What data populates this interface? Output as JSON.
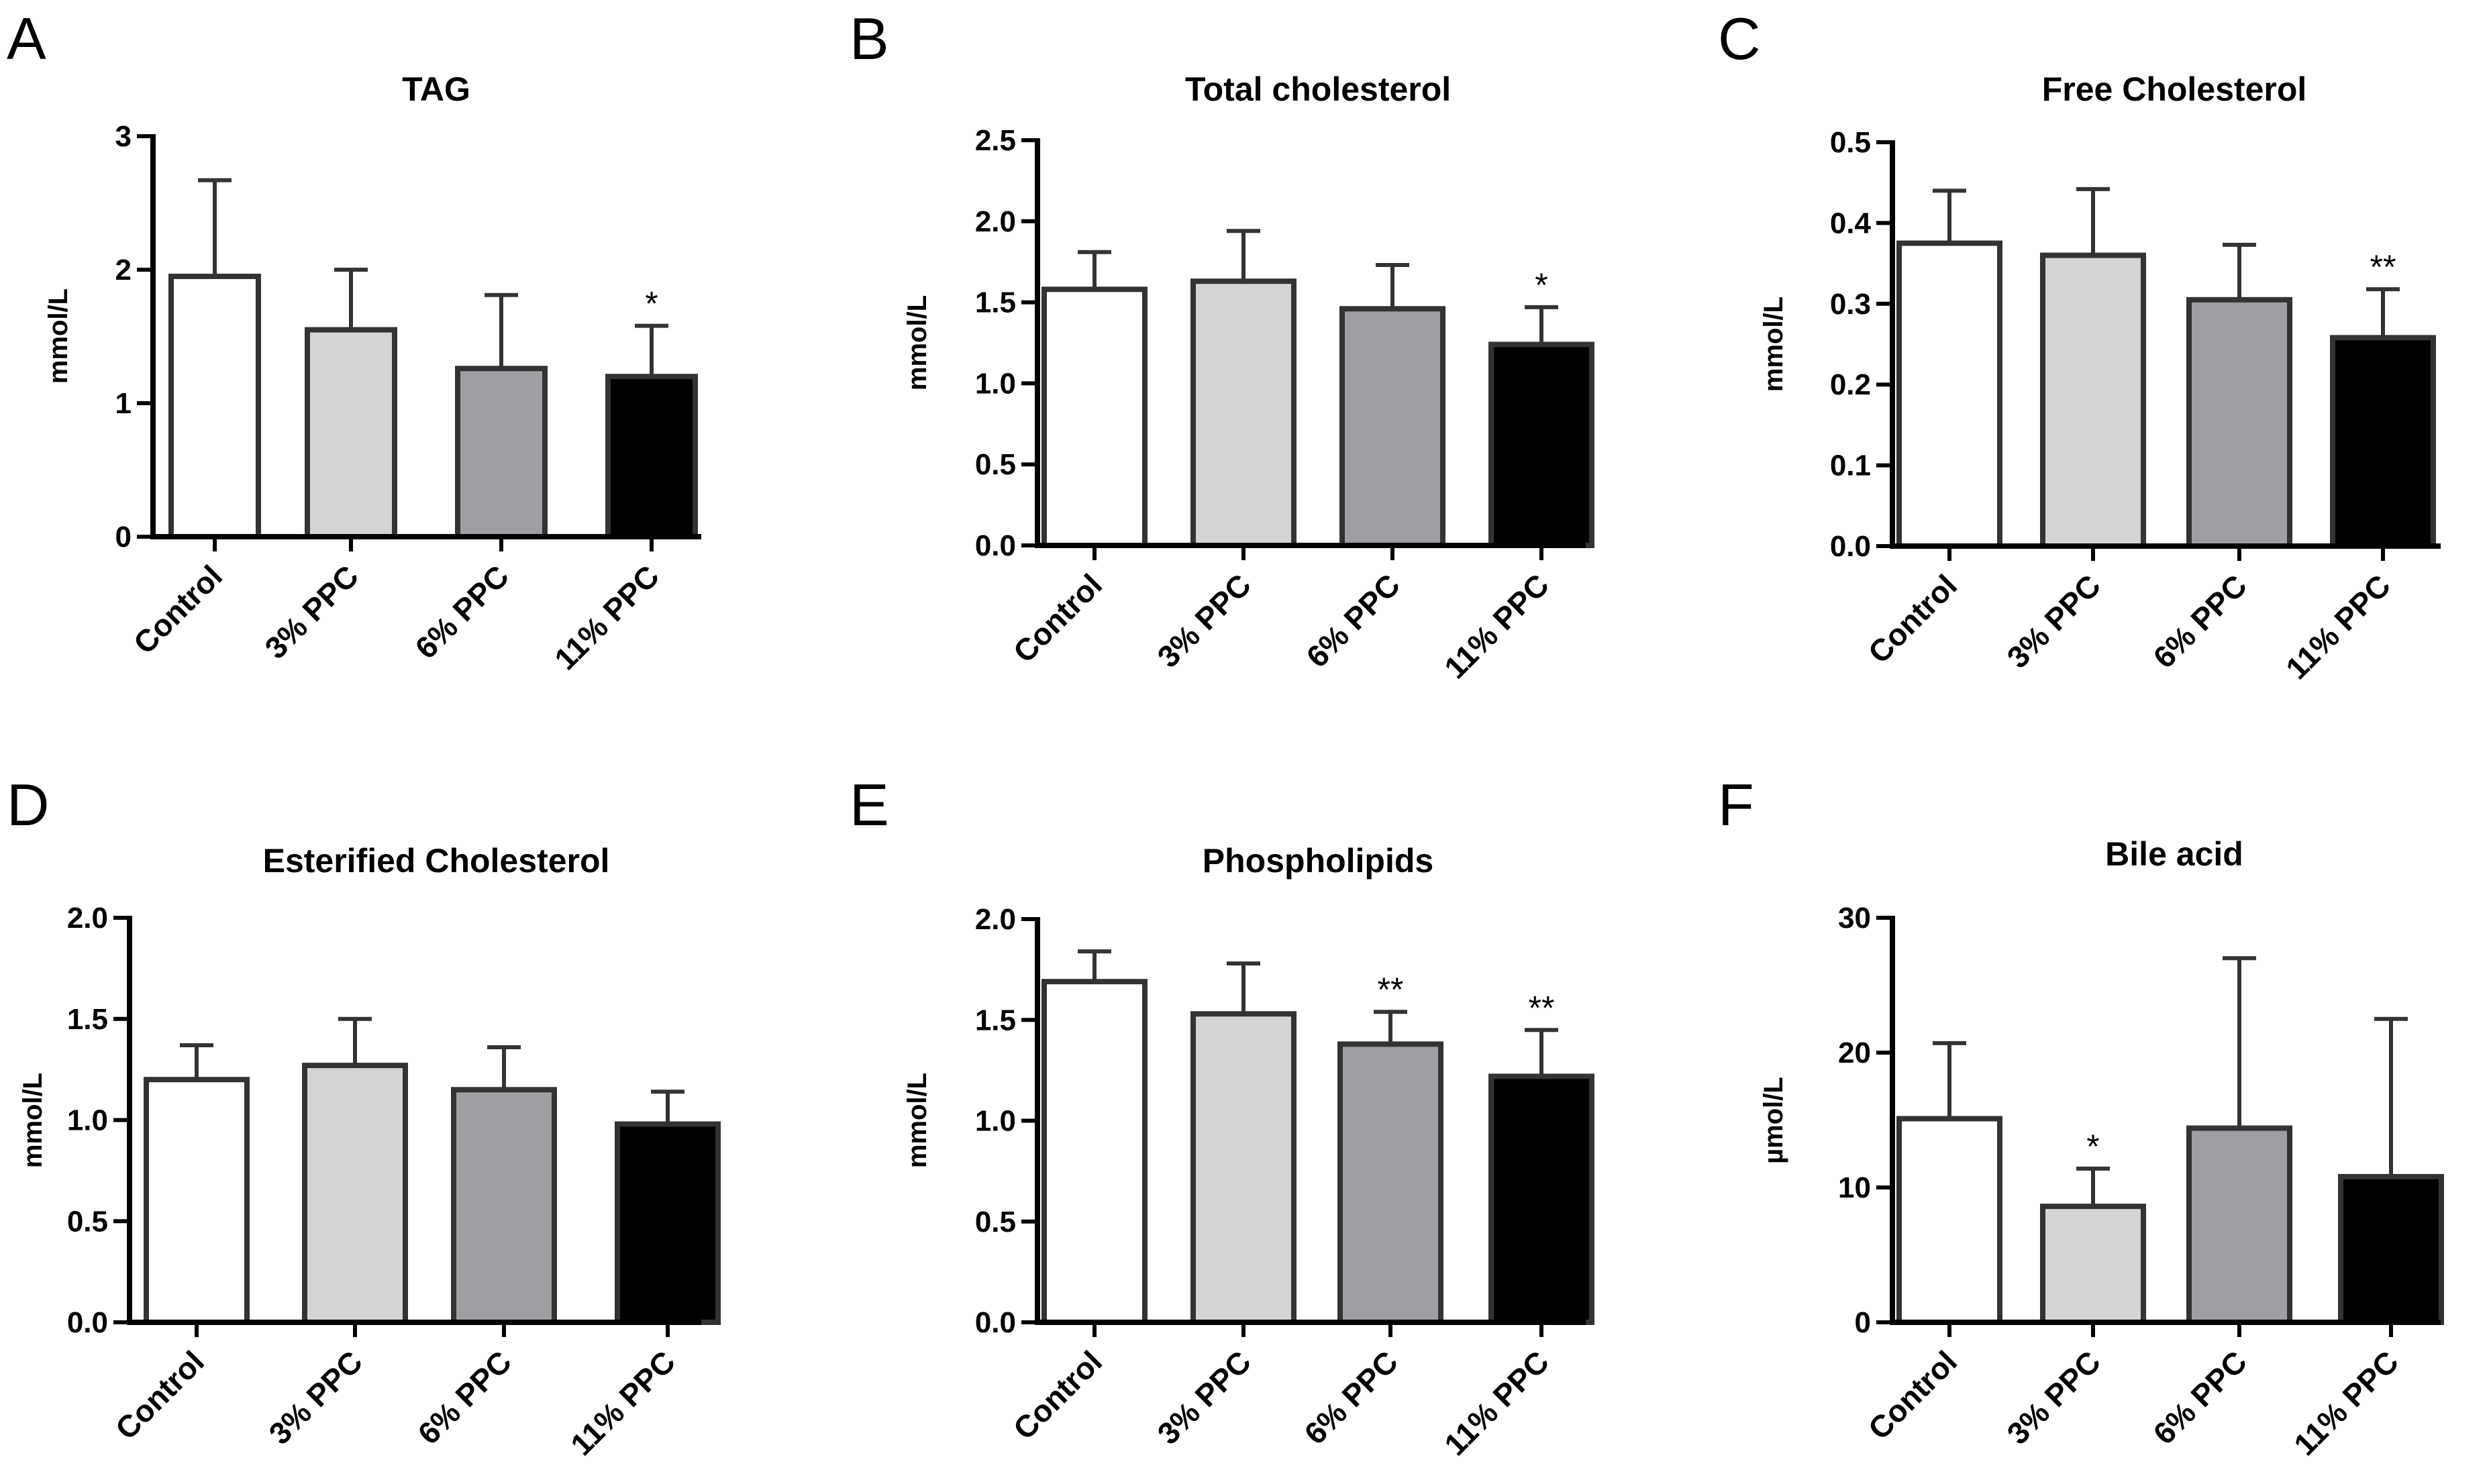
{
  "figure": {
    "colors": {
      "Control": "#ffffff",
      "3% PPC": "#d4d4d4",
      "6% PPC": "#9e9ea3",
      "11% PPC": "#000000",
      "outline": "#333333"
    }
  },
  "chart_data": [
    {
      "type": "bar",
      "letter": "A",
      "title": "TAG",
      "ylabel": "mmol/L",
      "categories": [
        "Control",
        "3% PPC",
        "6% PPC",
        "11% PPC"
      ],
      "values": [
        1.95,
        1.55,
        1.26,
        1.2
      ],
      "errors": [
        0.72,
        0.45,
        0.55,
        0.38
      ],
      "significance": [
        "",
        "",
        "",
        "*"
      ],
      "ylim": [
        0,
        3
      ],
      "yticks": [
        0,
        1,
        2,
        3
      ],
      "ytick_labels": [
        "0",
        "1",
        "2",
        "3"
      ]
    },
    {
      "type": "bar",
      "letter": "B",
      "title": "Total cholesterol",
      "ylabel": "mmol/L",
      "categories": [
        "Control",
        "3% PPC",
        "6% PPC",
        "11% PPC"
      ],
      "values": [
        1.58,
        1.63,
        1.46,
        1.24
      ],
      "errors": [
        0.23,
        0.31,
        0.27,
        0.23
      ],
      "significance": [
        "",
        "",
        "",
        "*"
      ],
      "ylim": [
        0,
        2.5
      ],
      "yticks": [
        0,
        0.5,
        1.0,
        1.5,
        2.0,
        2.5
      ],
      "ytick_labels": [
        "0.0",
        "0.5",
        "1.0",
        "1.5",
        "2.0",
        "2.5"
      ]
    },
    {
      "type": "bar",
      "letter": "C",
      "title": "Free Cholesterol",
      "ylabel": "mmol/L",
      "categories": [
        "Control",
        "3% PPC",
        "6% PPC",
        "11% PPC"
      ],
      "values": [
        0.375,
        0.36,
        0.305,
        0.258
      ],
      "errors": [
        0.065,
        0.082,
        0.068,
        0.06
      ],
      "significance": [
        "",
        "",
        "",
        "**"
      ],
      "ylim": [
        0,
        0.5
      ],
      "yticks": [
        0,
        0.1,
        0.2,
        0.3,
        0.4,
        0.5
      ],
      "ytick_labels": [
        "0.0",
        "0.1",
        "0.2",
        "0.3",
        "0.4",
        "0.5"
      ]
    },
    {
      "type": "bar",
      "letter": "D",
      "title": "Esterified Cholesterol",
      "ylabel": "mmol/L",
      "categories": [
        "Control",
        "3% PPC",
        "6% PPC",
        "11% PPC"
      ],
      "values": [
        1.2,
        1.27,
        1.15,
        0.98
      ],
      "errors": [
        0.17,
        0.23,
        0.21,
        0.16
      ],
      "significance": [
        "",
        "",
        "",
        ""
      ],
      "ylim": [
        0,
        2.0
      ],
      "yticks": [
        0,
        0.5,
        1.0,
        1.5,
        2.0
      ],
      "ytick_labels": [
        "0.0",
        "0.5",
        "1.0",
        "1.5",
        "2.0"
      ]
    },
    {
      "type": "bar",
      "letter": "E",
      "title": "Phospholipids",
      "ylabel": "mmol/L",
      "categories": [
        "Control",
        "3% PPC",
        "6% PPC",
        "11% PPC"
      ],
      "values": [
        1.69,
        1.53,
        1.38,
        1.22
      ],
      "errors": [
        0.15,
        0.25,
        0.16,
        0.23
      ],
      "significance": [
        "",
        "",
        "**",
        "**"
      ],
      "ylim": [
        0,
        2.0
      ],
      "yticks": [
        0,
        0.5,
        1.0,
        1.5,
        2.0
      ],
      "ytick_labels": [
        "0.0",
        "0.5",
        "1.0",
        "1.5",
        "2.0"
      ]
    },
    {
      "type": "bar",
      "letter": "F",
      "title": "Bile acid",
      "ylabel": "µmol/L",
      "categories": [
        "Control",
        "3% PPC",
        "6% PPC",
        "11% PPC"
      ],
      "values": [
        15.1,
        8.6,
        14.4,
        10.8
      ],
      "errors": [
        5.6,
        2.8,
        12.6,
        11.7
      ],
      "significance": [
        "",
        "*",
        "",
        ""
      ],
      "ylim": [
        0,
        30
      ],
      "yticks": [
        0,
        10,
        20,
        30
      ],
      "ytick_labels": [
        "0",
        "10",
        "20",
        "30"
      ]
    }
  ]
}
